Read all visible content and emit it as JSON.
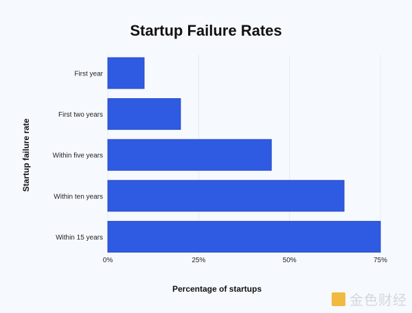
{
  "chart_data": {
    "type": "bar",
    "orientation": "horizontal",
    "title": "Startup Failure Rates",
    "xlabel": "Percentage of startups",
    "ylabel": "Startup failure rate",
    "categories": [
      "First year",
      "First two years",
      "Within five years",
      "Within ten years",
      "Within 15 years"
    ],
    "values": [
      10,
      20,
      45,
      65,
      75
    ],
    "xlim": [
      0,
      75
    ],
    "xticks": [
      "0%",
      "25%",
      "50%",
      "75%"
    ],
    "xtick_values": [
      0,
      25,
      50,
      75
    ],
    "grid": true,
    "bar_color": "#2f5be3"
  },
  "watermark": "金色财经"
}
